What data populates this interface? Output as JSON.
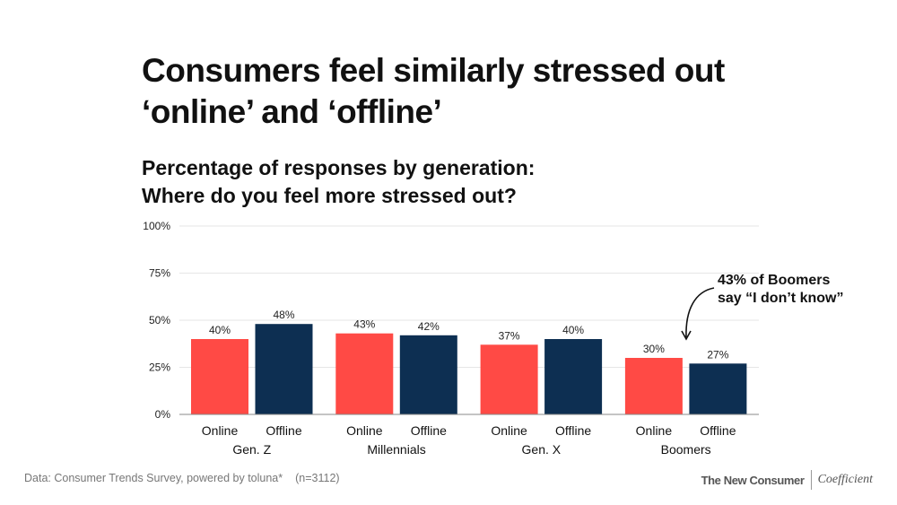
{
  "title": "Consumers feel similarly stressed out ‘online’ and ‘offline’",
  "subtitle_line1": "Percentage of responses by generation:",
  "subtitle_line2": "Where do you feel more stressed out?",
  "chart_data": {
    "type": "bar",
    "categories": [
      "Gen. Z",
      "Millennials",
      "Gen. X",
      "Boomers"
    ],
    "series": [
      {
        "name": "Online",
        "values": [
          40,
          43,
          37,
          30
        ],
        "color": "#ff4a45"
      },
      {
        "name": "Offline",
        "values": [
          48,
          42,
          40,
          27
        ],
        "color": "#0d2f52"
      }
    ],
    "data_labels": [
      [
        "40%",
        "48%"
      ],
      [
        "43%",
        "42%"
      ],
      [
        "37%",
        "40%"
      ],
      [
        "30%",
        "27%"
      ]
    ],
    "ylim": [
      0,
      100
    ],
    "yticks": [
      "0%",
      "25%",
      "50%",
      "75%",
      "100%"
    ],
    "grid": true,
    "annotation": {
      "line1": "43% of Boomers",
      "line2": "say “I don’t know”"
    }
  },
  "footer": {
    "source": "Data: Consumer Trends Survey, powered by toluna*",
    "n": "(n=3112)",
    "brand1": "The New Consumer",
    "brand2": "Coefficient"
  }
}
